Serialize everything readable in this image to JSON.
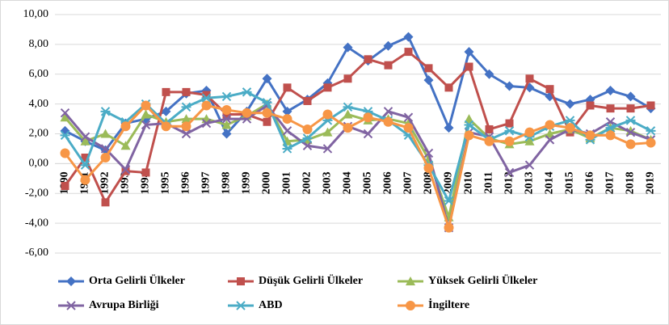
{
  "chart_data": {
    "type": "line",
    "categories": [
      "1990",
      "1991",
      "1992",
      "1993",
      "1994",
      "1995",
      "1996",
      "1997",
      "1998",
      "1999",
      "2000",
      "2001",
      "2002",
      "2003",
      "2004",
      "2005",
      "2006",
      "2007",
      "2008",
      "2009",
      "2010",
      "2011",
      "2012",
      "2013",
      "2014",
      "2015",
      "2016",
      "2017",
      "2018",
      "2019"
    ],
    "series": [
      {
        "name": "Orta Gelirli Ülkeler",
        "color": "#4472c4",
        "marker": "diamond",
        "values": [
          2.2,
          1.5,
          0.9,
          2.7,
          3.0,
          3.5,
          4.7,
          4.9,
          2.0,
          3.5,
          5.7,
          3.5,
          4.3,
          5.4,
          7.8,
          6.9,
          7.9,
          8.5,
          5.6,
          2.4,
          7.5,
          6.0,
          5.2,
          5.1,
          4.5,
          4.0,
          4.3,
          4.9,
          4.5,
          3.7
        ]
      },
      {
        "name": "Düşük Gelirli Ülkeler",
        "color": "#c0504d",
        "marker": "square",
        "values": [
          -1.5,
          0.4,
          -2.6,
          -0.5,
          -0.6,
          4.8,
          4.8,
          4.6,
          3.3,
          3.3,
          2.8,
          5.1,
          4.2,
          5.1,
          5.7,
          7.0,
          6.6,
          7.5,
          6.4,
          5.1,
          6.5,
          2.3,
          2.7,
          5.7,
          5.0,
          2.1,
          3.9,
          3.7,
          3.7,
          3.9
        ]
      },
      {
        "name": "Yüksek Gelirli Ülkeler",
        "color": "#9bbb59",
        "marker": "triangle",
        "values": [
          3.1,
          1.5,
          2.0,
          1.2,
          3.3,
          2.8,
          3.0,
          3.0,
          2.6,
          3.2,
          4.0,
          1.5,
          1.6,
          2.1,
          3.3,
          2.9,
          3.0,
          2.7,
          0.3,
          -3.6,
          3.0,
          1.7,
          1.3,
          1.5,
          2.0,
          2.3,
          1.7,
          2.4,
          2.2,
          1.6
        ]
      },
      {
        "name": "Avrupa Birliği",
        "color": "#8064a2",
        "marker": "x",
        "values": [
          3.4,
          1.8,
          1.0,
          -0.4,
          2.6,
          2.7,
          2.0,
          2.7,
          3.0,
          3.0,
          3.9,
          2.2,
          1.2,
          1.0,
          2.5,
          2.0,
          3.5,
          3.1,
          0.7,
          -4.3,
          2.1,
          1.8,
          -0.6,
          -0.1,
          1.6,
          2.3,
          2.0,
          2.8,
          2.1,
          1.6
        ]
      },
      {
        "name": "ABD",
        "color": "#4bacc6",
        "marker": "star",
        "values": [
          1.9,
          -0.1,
          3.5,
          2.8,
          4.0,
          2.7,
          3.8,
          4.4,
          4.5,
          4.8,
          4.1,
          1.0,
          1.7,
          2.9,
          3.8,
          3.5,
          2.9,
          1.9,
          -0.1,
          -2.5,
          2.6,
          1.6,
          2.2,
          1.8,
          2.5,
          2.9,
          1.6,
          2.4,
          2.9,
          2.2
        ]
      },
      {
        "name": "İngiltere",
        "color": "#f79646",
        "marker": "circle",
        "values": [
          0.7,
          -1.1,
          0.4,
          2.5,
          3.9,
          2.5,
          2.5,
          3.9,
          3.6,
          3.4,
          3.4,
          3.0,
          2.3,
          3.3,
          2.4,
          3.1,
          2.8,
          2.4,
          -0.3,
          -4.3,
          1.9,
          1.5,
          1.5,
          2.1,
          2.6,
          2.4,
          1.9,
          1.9,
          1.3,
          1.4
        ]
      }
    ],
    "ylim": [
      -6,
      10
    ],
    "yticks": [
      {
        "value": -6,
        "label": "-6,00"
      },
      {
        "value": -4,
        "label": "-4,00"
      },
      {
        "value": -2,
        "label": "-2,00"
      },
      {
        "value": 0,
        "label": "0,00"
      },
      {
        "value": 2,
        "label": "2,00"
      },
      {
        "value": 4,
        "label": "4,00"
      },
      {
        "value": 6,
        "label": "6,00"
      },
      {
        "value": 8,
        "label": "8,00"
      },
      {
        "value": 10,
        "label": "10,00"
      }
    ],
    "grid": true,
    "legend": "bottom"
  }
}
